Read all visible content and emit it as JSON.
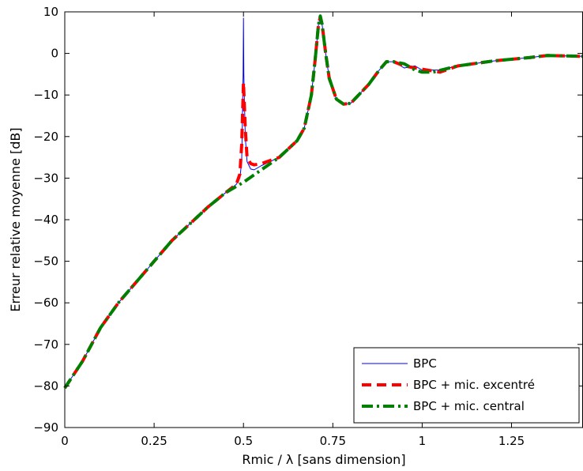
{
  "chart_data": {
    "type": "line",
    "title": "",
    "xlabel": "Rmic / λ  [sans dimension]",
    "ylabel": "Erreur relative moyenne [dB]",
    "xlim": [
      0,
      1.45
    ],
    "ylim": [
      -90,
      10
    ],
    "xticks": [
      0,
      0.25,
      0.5,
      0.75,
      1,
      1.25
    ],
    "xtick_labels": [
      "0",
      "0.25",
      "0.5",
      "0.75",
      "1",
      "1.25"
    ],
    "yticks": [
      10,
      0,
      -10,
      -20,
      -30,
      -40,
      -50,
      -60,
      -70,
      -80,
      -90
    ],
    "ytick_labels": [
      "10",
      "0",
      "−10",
      "−20",
      "−30",
      "−40",
      "−50",
      "−60",
      "−70",
      "−80",
      "−90"
    ],
    "grid": false,
    "legend_position": "bottom-right",
    "series": [
      {
        "name": "BPC",
        "color": "#0000ff",
        "style": "solid",
        "points": [
          [
            0,
            -80.5
          ],
          [
            0.05,
            -74
          ],
          [
            0.1,
            -66
          ],
          [
            0.15,
            -60
          ],
          [
            0.2,
            -55
          ],
          [
            0.25,
            -50
          ],
          [
            0.3,
            -45
          ],
          [
            0.35,
            -41
          ],
          [
            0.4,
            -37
          ],
          [
            0.45,
            -33.5
          ],
          [
            0.48,
            -31.5
          ],
          [
            0.49,
            -30
          ],
          [
            0.495,
            -26
          ],
          [
            0.499,
            -5
          ],
          [
            0.5,
            8.5
          ],
          [
            0.501,
            -5
          ],
          [
            0.505,
            -20
          ],
          [
            0.51,
            -26
          ],
          [
            0.52,
            -27.8
          ],
          [
            0.53,
            -28
          ],
          [
            0.55,
            -27
          ],
          [
            0.6,
            -25
          ],
          [
            0.65,
            -21
          ],
          [
            0.67,
            -18
          ],
          [
            0.69,
            -10
          ],
          [
            0.7,
            -2
          ],
          [
            0.71,
            7
          ],
          [
            0.715,
            8.7
          ],
          [
            0.72,
            7
          ],
          [
            0.73,
            0
          ],
          [
            0.74,
            -6
          ],
          [
            0.76,
            -11
          ],
          [
            0.78,
            -12.2
          ],
          [
            0.8,
            -12
          ],
          [
            0.85,
            -7.5
          ],
          [
            0.88,
            -4
          ],
          [
            0.9,
            -2
          ],
          [
            0.92,
            -2
          ],
          [
            0.95,
            -3.5
          ],
          [
            0.98,
            -3
          ],
          [
            1,
            -4
          ],
          [
            1.05,
            -4
          ],
          [
            1.1,
            -3
          ],
          [
            1.2,
            -1.8
          ],
          [
            1.3,
            -1
          ],
          [
            1.35,
            -0.5
          ],
          [
            1.4,
            -0.6
          ],
          [
            1.45,
            -0.7
          ]
        ]
      },
      {
        "name": "BPC + mic. excentré",
        "color": "#ff0000",
        "style": "dashed",
        "points": [
          [
            0,
            -80.5
          ],
          [
            0.05,
            -74
          ],
          [
            0.1,
            -66
          ],
          [
            0.15,
            -60
          ],
          [
            0.2,
            -55
          ],
          [
            0.25,
            -50
          ],
          [
            0.3,
            -45
          ],
          [
            0.35,
            -41
          ],
          [
            0.4,
            -37
          ],
          [
            0.45,
            -33.5
          ],
          [
            0.48,
            -31.5
          ],
          [
            0.49,
            -29
          ],
          [
            0.495,
            -22
          ],
          [
            0.5,
            -7
          ],
          [
            0.505,
            -18
          ],
          [
            0.51,
            -25
          ],
          [
            0.52,
            -26.5
          ],
          [
            0.53,
            -26.8
          ],
          [
            0.55,
            -26.5
          ],
          [
            0.6,
            -25
          ],
          [
            0.65,
            -21
          ],
          [
            0.67,
            -18
          ],
          [
            0.69,
            -10
          ],
          [
            0.7,
            -2
          ],
          [
            0.71,
            7
          ],
          [
            0.715,
            8.7
          ],
          [
            0.72,
            7
          ],
          [
            0.73,
            0
          ],
          [
            0.74,
            -6
          ],
          [
            0.76,
            -11
          ],
          [
            0.78,
            -12.2
          ],
          [
            0.8,
            -12
          ],
          [
            0.85,
            -7.5
          ],
          [
            0.88,
            -4
          ],
          [
            0.9,
            -2
          ],
          [
            0.92,
            -2
          ],
          [
            0.95,
            -3
          ],
          [
            0.98,
            -3.5
          ],
          [
            1,
            -3.8
          ],
          [
            1.05,
            -4.5
          ],
          [
            1.1,
            -3
          ],
          [
            1.2,
            -1.8
          ],
          [
            1.3,
            -1
          ],
          [
            1.35,
            -0.5
          ],
          [
            1.4,
            -0.6
          ],
          [
            1.45,
            -0.7
          ]
        ]
      },
      {
        "name": "BPC + mic. central",
        "color": "#008000",
        "style": "dashdot",
        "points": [
          [
            0,
            -80.5
          ],
          [
            0.05,
            -74
          ],
          [
            0.1,
            -66
          ],
          [
            0.15,
            -60
          ],
          [
            0.2,
            -55
          ],
          [
            0.25,
            -50
          ],
          [
            0.3,
            -45
          ],
          [
            0.35,
            -41
          ],
          [
            0.4,
            -37
          ],
          [
            0.45,
            -33.5
          ],
          [
            0.5,
            -31
          ],
          [
            0.55,
            -28
          ],
          [
            0.6,
            -25
          ],
          [
            0.65,
            -21
          ],
          [
            0.67,
            -18
          ],
          [
            0.69,
            -10
          ],
          [
            0.7,
            -2
          ],
          [
            0.71,
            7
          ],
          [
            0.715,
            9
          ],
          [
            0.72,
            7
          ],
          [
            0.73,
            0
          ],
          [
            0.74,
            -6
          ],
          [
            0.76,
            -11
          ],
          [
            0.78,
            -12.2
          ],
          [
            0.8,
            -12
          ],
          [
            0.85,
            -7.5
          ],
          [
            0.88,
            -4
          ],
          [
            0.9,
            -2
          ],
          [
            0.92,
            -2
          ],
          [
            0.95,
            -2.5
          ],
          [
            0.98,
            -4
          ],
          [
            1,
            -4.5
          ],
          [
            1.03,
            -4.5
          ],
          [
            1.1,
            -3
          ],
          [
            1.2,
            -1.8
          ],
          [
            1.3,
            -1
          ],
          [
            1.35,
            -0.5
          ],
          [
            1.4,
            -0.6
          ],
          [
            1.45,
            -0.7
          ]
        ]
      }
    ]
  }
}
